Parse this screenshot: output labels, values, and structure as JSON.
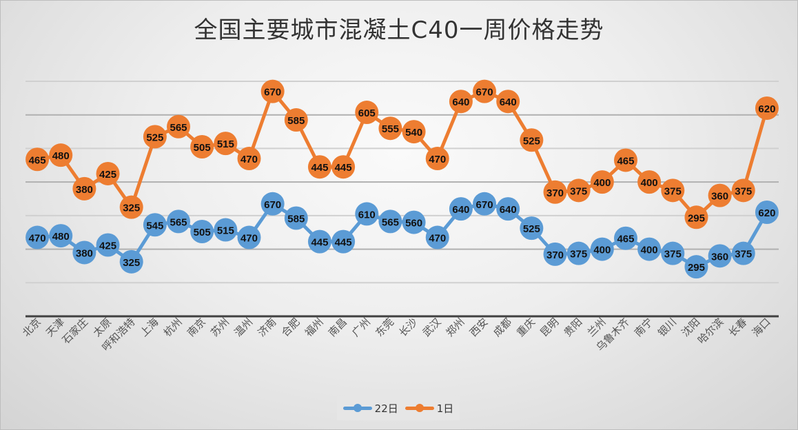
{
  "chart_data": {
    "type": "line",
    "stacked": true,
    "title": "全国主要城市混凝土C40一周价格走势",
    "categories": [
      "北京",
      "天津",
      "石家庄",
      "太原",
      "呼和浩特",
      "上海",
      "杭州",
      "南京",
      "苏州",
      "温州",
      "济南",
      "合肥",
      "福州",
      "南昌",
      "广州",
      "东莞",
      "长沙",
      "武汉",
      "郑州",
      "西安",
      "成都",
      "重庆",
      "昆明",
      "贵阳",
      "兰州",
      "乌鲁木齐",
      "南宁",
      "银川",
      "沈阳",
      "哈尔滨",
      "长春",
      "海口"
    ],
    "series": [
      {
        "name": "22日",
        "color": "#5b9bd5",
        "values": [
          470,
          480,
          380,
          425,
          325,
          545,
          565,
          505,
          515,
          470,
          670,
          585,
          445,
          445,
          610,
          565,
          560,
          470,
          640,
          670,
          640,
          525,
          370,
          375,
          400,
          465,
          400,
          375,
          295,
          360,
          375,
          620
        ]
      },
      {
        "name": "1日",
        "color": "#ed7d31",
        "values": [
          465,
          480,
          380,
          425,
          325,
          525,
          565,
          505,
          515,
          470,
          670,
          585,
          445,
          445,
          605,
          555,
          540,
          470,
          640,
          670,
          640,
          525,
          370,
          375,
          400,
          465,
          400,
          375,
          295,
          360,
          375,
          620
        ]
      }
    ],
    "ylim": [
      0,
      1400
    ],
    "y_major_unit": 200,
    "y_tick_labels_visible": false,
    "grid": true,
    "data_labels": true,
    "legend": "bottom"
  }
}
